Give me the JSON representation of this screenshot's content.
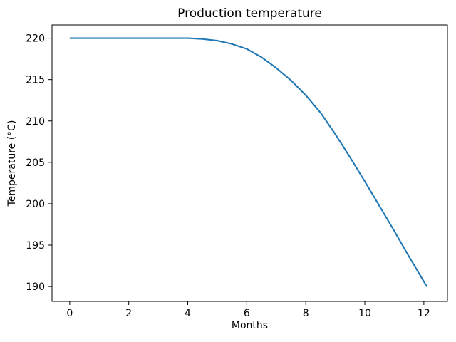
{
  "chart_data": {
    "type": "line",
    "title": "Production temperature",
    "xlabel": "Months",
    "ylabel": "Temperature (°C)",
    "x": [
      0,
      0.5,
      1,
      1.5,
      2,
      2.5,
      3,
      3.5,
      4,
      4.5,
      5,
      5.5,
      6,
      6.5,
      7,
      7.5,
      8,
      8.5,
      9,
      9.5,
      10,
      10.5,
      11,
      11.5,
      12.1
    ],
    "y": [
      220,
      220,
      220,
      220,
      220,
      220,
      220,
      220,
      220,
      219.9,
      219.7,
      219.3,
      218.7,
      217.7,
      216.4,
      214.9,
      213.1,
      211.0,
      208.4,
      205.6,
      202.7,
      199.7,
      196.7,
      193.6,
      190.0
    ],
    "xticks": [
      0,
      2,
      4,
      6,
      8,
      10,
      12
    ],
    "yticks": [
      190,
      195,
      200,
      205,
      210,
      215,
      220
    ],
    "xlim": [
      -0.6,
      12.8
    ],
    "ylim": [
      188.2,
      221.6
    ],
    "line_color": "#1f77b4",
    "axis_color": "#000000",
    "background_color": "#ffffff",
    "grid": false,
    "legend": null
  }
}
